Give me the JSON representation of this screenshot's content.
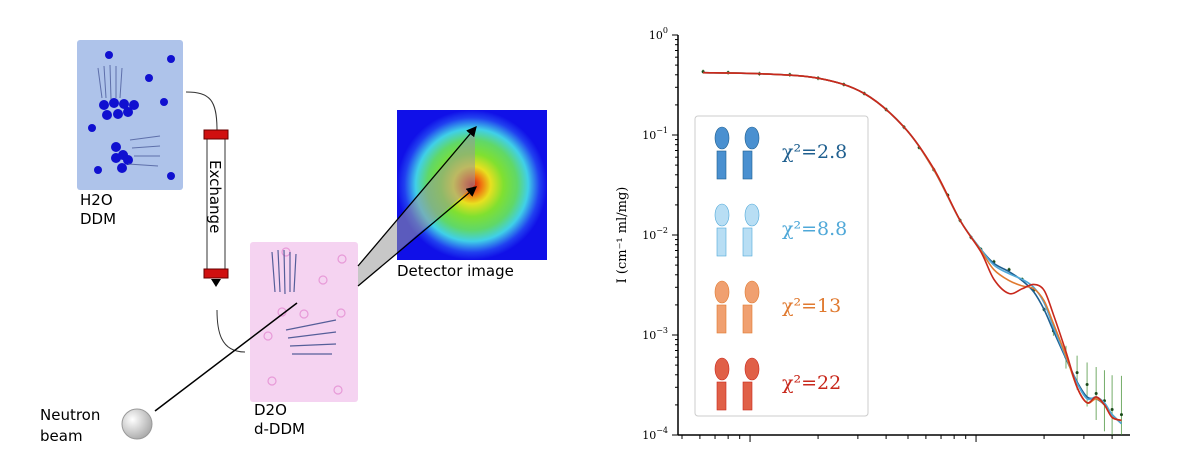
{
  "diagram": {
    "sample1_label_line1": "H2O",
    "sample1_label_line2": "DDM",
    "exchange_label": "Exchange",
    "sample2_label_line1": "D2O",
    "sample2_label_line2": "d-DDM",
    "detector_label": "Detector image",
    "source_label_line1": "Neutron",
    "source_label_line2": "beam",
    "colors": {
      "h2o_box": "#aec3ea",
      "d2o_box": "#f5d3f1",
      "protonated_detergent": "#1010d0",
      "deuterated_detergent": "#e79ad8",
      "valve": "#d01010"
    }
  },
  "chart_data": {
    "type": "line",
    "xscale": "log",
    "yscale": "log",
    "ylabel": "I (cm⁻¹ ml/mg)",
    "ylim": [
      0.0001,
      1
    ],
    "yticks": [
      "10^0",
      "10^-1",
      "10^-2",
      "10^-3",
      "10^-4"
    ],
    "xlim": [
      0.0048,
      0.48
    ],
    "xtick_labels_visible": false,
    "grid": false,
    "legend_position": "left",
    "data": {
      "color": "#3a8a2a",
      "x": [
        0.0062,
        0.008,
        0.011,
        0.015,
        0.02,
        0.026,
        0.032,
        0.04,
        0.048,
        0.056,
        0.065,
        0.075,
        0.085,
        0.095,
        0.105,
        0.12,
        0.14,
        0.16,
        0.18,
        0.2,
        0.22,
        0.25,
        0.28,
        0.31,
        0.34,
        0.37,
        0.4,
        0.44
      ],
      "y": [
        0.43,
        0.42,
        0.41,
        0.4,
        0.37,
        0.32,
        0.26,
        0.18,
        0.12,
        0.075,
        0.045,
        0.025,
        0.014,
        0.0095,
        0.0072,
        0.0054,
        0.0045,
        0.0036,
        0.0028,
        0.0018,
        0.0011,
        0.0006,
        0.00042,
        0.00032,
        0.00026,
        0.00022,
        0.00018,
        0.00016
      ]
    },
    "series": [
      {
        "name": "χ²=2.8",
        "color": "#1f5f8f",
        "x": [
          0.0062,
          0.011,
          0.02,
          0.032,
          0.048,
          0.065,
          0.085,
          0.105,
          0.12,
          0.14,
          0.16,
          0.18,
          0.2,
          0.22,
          0.25,
          0.28,
          0.31,
          0.34,
          0.37,
          0.4,
          0.44
        ],
        "y": [
          0.42,
          0.41,
          0.37,
          0.26,
          0.12,
          0.045,
          0.014,
          0.0072,
          0.0052,
          0.0043,
          0.0035,
          0.0027,
          0.0018,
          0.0011,
          0.00058,
          0.00034,
          0.00024,
          0.00023,
          0.0002,
          0.00016,
          0.00013
        ]
      },
      {
        "name": "χ²=8.8",
        "color": "#4fa8d8",
        "x": [
          0.0062,
          0.011,
          0.02,
          0.032,
          0.048,
          0.065,
          0.085,
          0.105,
          0.12,
          0.14,
          0.16,
          0.18,
          0.2,
          0.22,
          0.25,
          0.28,
          0.31,
          0.34,
          0.37,
          0.4,
          0.44
        ],
        "y": [
          0.42,
          0.41,
          0.37,
          0.26,
          0.12,
          0.045,
          0.014,
          0.0072,
          0.005,
          0.0041,
          0.0036,
          0.003,
          0.0021,
          0.0012,
          0.0006,
          0.00033,
          0.00023,
          0.00024,
          0.00021,
          0.00016,
          0.00013
        ]
      },
      {
        "name": "χ²=13",
        "color": "#e07a30",
        "x": [
          0.0062,
          0.011,
          0.02,
          0.032,
          0.048,
          0.065,
          0.085,
          0.105,
          0.12,
          0.14,
          0.16,
          0.18,
          0.2,
          0.22,
          0.25,
          0.28,
          0.31,
          0.34,
          0.37,
          0.4,
          0.44
        ],
        "y": [
          0.42,
          0.41,
          0.37,
          0.26,
          0.12,
          0.045,
          0.014,
          0.007,
          0.0045,
          0.0035,
          0.0031,
          0.0029,
          0.0022,
          0.0013,
          0.00062,
          0.0003,
          0.00021,
          0.00023,
          0.0002,
          0.00015,
          0.00014
        ]
      },
      {
        "name": "χ²=22",
        "color": "#c8281c",
        "x": [
          0.0062,
          0.011,
          0.02,
          0.032,
          0.048,
          0.065,
          0.085,
          0.105,
          0.12,
          0.14,
          0.16,
          0.18,
          0.2,
          0.22,
          0.25,
          0.28,
          0.31,
          0.34,
          0.37,
          0.4,
          0.44
        ],
        "y": [
          0.42,
          0.41,
          0.37,
          0.26,
          0.12,
          0.046,
          0.014,
          0.0068,
          0.0036,
          0.0026,
          0.0029,
          0.0032,
          0.0028,
          0.0016,
          0.00068,
          0.0003,
          0.00021,
          0.00024,
          0.0002,
          0.00015,
          0.00014
        ]
      }
    ]
  }
}
